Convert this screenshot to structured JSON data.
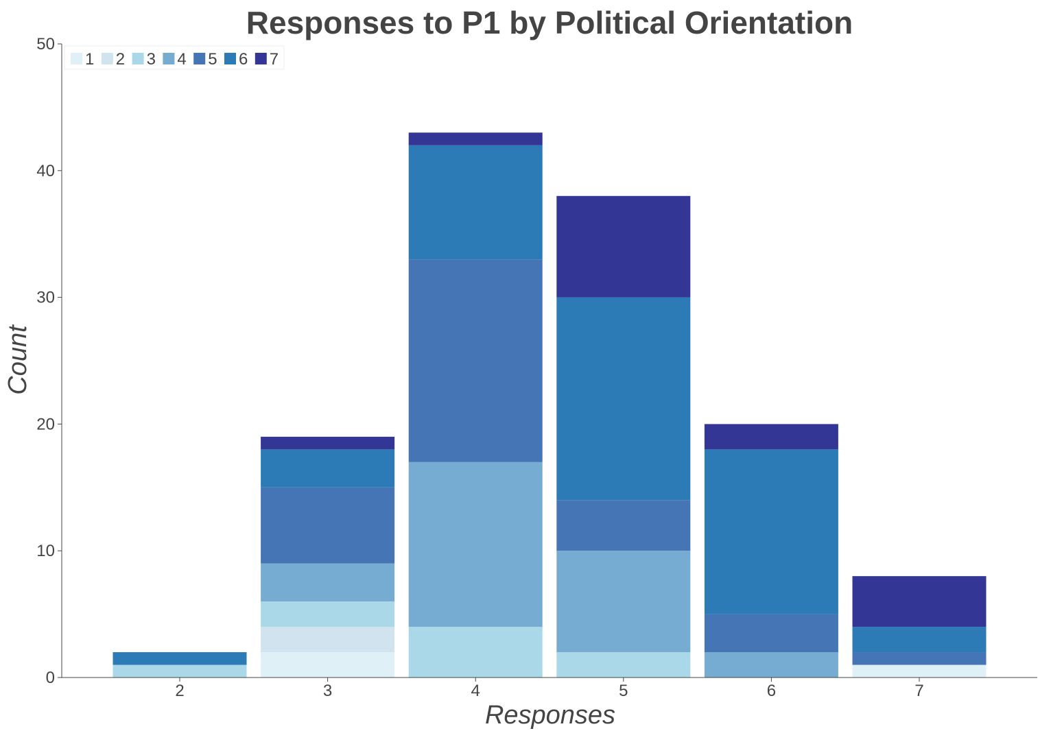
{
  "chart_data": {
    "type": "bar",
    "stacked": true,
    "title": "Responses to P1 by Political Orientation",
    "xlabel": "Responses",
    "ylabel": "Count",
    "categories": [
      "2",
      "3",
      "4",
      "5",
      "6",
      "7"
    ],
    "ylim": [
      0,
      50
    ],
    "yticks": [
      0,
      10,
      20,
      30,
      40,
      50
    ],
    "grid": false,
    "legend_position": "top-left",
    "series": [
      {
        "name": "1",
        "color": "#dff1f7",
        "values": [
          0,
          2,
          0,
          0,
          0,
          1
        ]
      },
      {
        "name": "2",
        "color": "#d0e3ef",
        "values": [
          0,
          2,
          0,
          0,
          0,
          0
        ]
      },
      {
        "name": "3",
        "color": "#abd8e8",
        "values": [
          1,
          2,
          4,
          2,
          0,
          0
        ]
      },
      {
        "name": "4",
        "color": "#77acd2",
        "values": [
          0,
          3,
          13,
          8,
          2,
          0
        ]
      },
      {
        "name": "5",
        "color": "#4575b4",
        "values": [
          0,
          6,
          16,
          4,
          3,
          1
        ]
      },
      {
        "name": "6",
        "color": "#2c7bb6",
        "values": [
          1,
          3,
          9,
          16,
          13,
          2
        ]
      },
      {
        "name": "7",
        "color": "#333695",
        "values": [
          0,
          1,
          1,
          8,
          2,
          4
        ]
      }
    ]
  }
}
